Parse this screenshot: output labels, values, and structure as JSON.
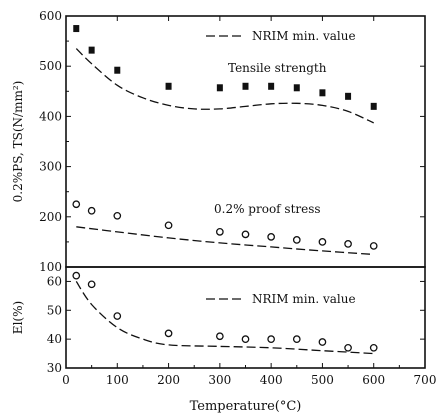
{
  "chart_data": [
    {
      "type": "scatter",
      "xlim": [
        0,
        700
      ],
      "ylim": [
        100,
        600
      ],
      "ylabel": "0.2%PS, TS(N/mm²)",
      "y_ticks": [
        100,
        200,
        300,
        400,
        500,
        600
      ],
      "grid": false,
      "legend": {
        "position": "top-right",
        "label": "NRIM min. value"
      },
      "annotations": [
        "Tensile strength",
        "0.2% proof stress"
      ],
      "series": [
        {
          "name": "Tensile strength",
          "marker": "filled-square",
          "x": [
            20,
            50,
            100,
            200,
            300,
            350,
            400,
            450,
            500,
            550,
            600
          ],
          "y": [
            575,
            532,
            492,
            460,
            457,
            460,
            460,
            457,
            447,
            440,
            420
          ]
        },
        {
          "name": "0.2% proof stress",
          "marker": "open-circle",
          "x": [
            20,
            50,
            100,
            200,
            300,
            350,
            400,
            450,
            500,
            550,
            600
          ],
          "y": [
            225,
            212,
            202,
            183,
            170,
            165,
            160,
            154,
            150,
            146,
            142
          ]
        },
        {
          "name": "NRIM min. value (TS)",
          "style": "dashed",
          "x": [
            20,
            50,
            100,
            150,
            200,
            250,
            300,
            350,
            400,
            450,
            500,
            550,
            600
          ],
          "y": [
            535,
            505,
            462,
            437,
            422,
            415,
            415,
            420,
            425,
            426,
            422,
            410,
            387
          ]
        },
        {
          "name": "NRIM min. value (0.2% PS)",
          "style": "dashed",
          "x": [
            20,
            100,
            200,
            300,
            400,
            500,
            600
          ],
          "y": [
            180,
            170,
            158,
            148,
            140,
            132,
            125
          ]
        }
      ]
    },
    {
      "type": "scatter",
      "xlim": [
        0,
        700
      ],
      "ylim": [
        30,
        65
      ],
      "xlabel": "Temperature(°C)",
      "ylabel": "El(%)",
      "x_ticks": [
        0,
        100,
        200,
        300,
        400,
        500,
        600,
        700
      ],
      "y_ticks": [
        30,
        40,
        50,
        60
      ],
      "grid": false,
      "legend": {
        "position": "top-right",
        "label": "NRIM min. value"
      },
      "series": [
        {
          "name": "Elongation",
          "marker": "open-circle",
          "x": [
            20,
            50,
            100,
            200,
            300,
            350,
            400,
            450,
            500,
            550,
            600
          ],
          "y": [
            62,
            59,
            48,
            42,
            41,
            40,
            40,
            40,
            39,
            37,
            37
          ]
        },
        {
          "name": "NRIM min. value",
          "style": "dashed",
          "x": [
            20,
            50,
            100,
            150,
            200,
            300,
            400,
            500,
            600
          ],
          "y": [
            60,
            52,
            44,
            40,
            38,
            37.5,
            37,
            36,
            35
          ]
        }
      ]
    }
  ]
}
